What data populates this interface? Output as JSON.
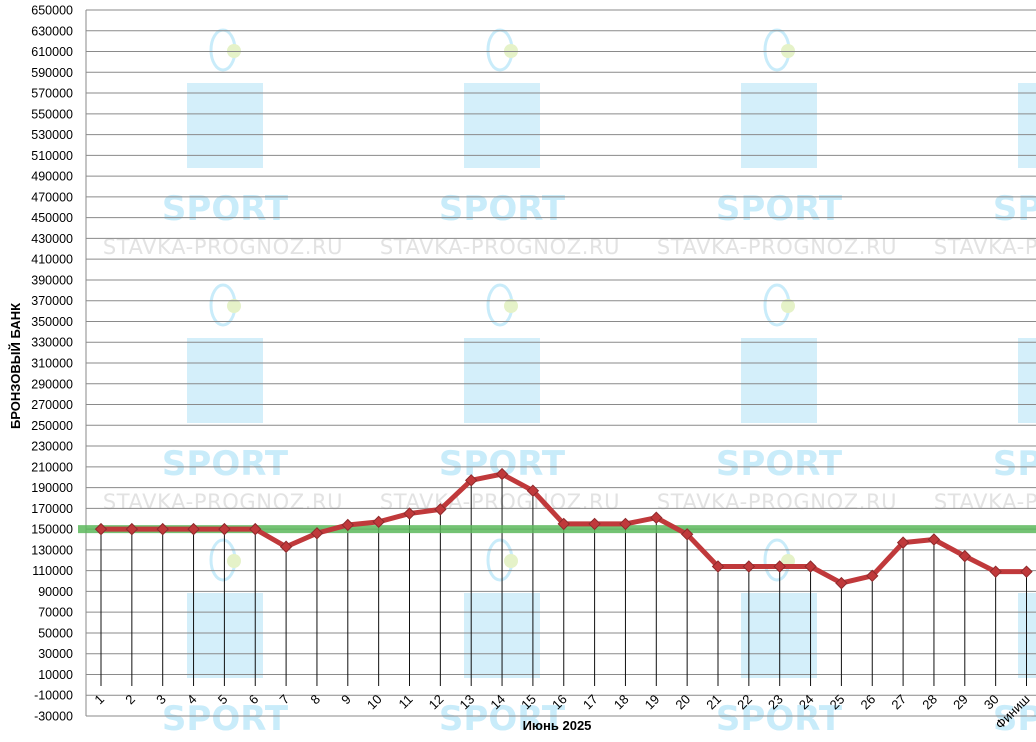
{
  "chart_data": {
    "type": "line",
    "xlabel": "Июнь 2025",
    "ylabel": "БРОНЗОВЫЙ БАНК",
    "categories": [
      "1",
      "2",
      "3",
      "4",
      "5",
      "6",
      "7",
      "8",
      "9",
      "10",
      "11",
      "12",
      "13",
      "14",
      "15",
      "16",
      "17",
      "18",
      "19",
      "20",
      "21",
      "22",
      "23",
      "24",
      "25",
      "26",
      "27",
      "28",
      "29",
      "30",
      "Финиш"
    ],
    "series": [
      {
        "color": "#c0393b",
        "values": [
          150000,
          150000,
          150000,
          150000,
          150000,
          150000,
          133000,
          146000,
          154000,
          157000,
          165000,
          169000,
          197000,
          203000,
          187000,
          155000,
          155000,
          155000,
          161000,
          145000,
          114000,
          114000,
          114000,
          114000,
          98000,
          105000,
          137000,
          140000,
          124000,
          109000,
          109000
        ]
      }
    ],
    "reference_line": {
      "value": 150000,
      "color": "#5cb85c"
    },
    "ylim": [
      -30000,
      650000
    ],
    "yticks": [
      -30000,
      -10000,
      10000,
      30000,
      50000,
      70000,
      90000,
      110000,
      130000,
      150000,
      170000,
      190000,
      210000,
      230000,
      250000,
      270000,
      290000,
      310000,
      330000,
      350000,
      370000,
      390000,
      410000,
      430000,
      450000,
      470000,
      490000,
      510000,
      530000,
      550000,
      570000,
      590000,
      610000,
      630000,
      650000
    ],
    "grid": true,
    "drop_lines": true,
    "marker": "diamond"
  },
  "watermark": {
    "text": "SPORT",
    "url": "STAVKA-PROGNOZ.RU"
  }
}
